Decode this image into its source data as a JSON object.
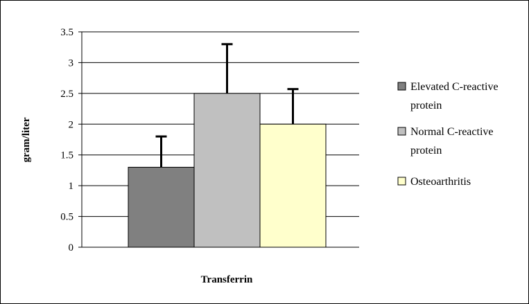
{
  "chart_data": {
    "type": "bar",
    "title": "",
    "xlabel": "Transferrin",
    "ylabel": "gram/liter",
    "ylim": [
      0,
      3.5
    ],
    "yticks": [
      0,
      0.5,
      1,
      1.5,
      2,
      2.5,
      3,
      3.5
    ],
    "ytick_labels": [
      "0",
      "0.5",
      "1",
      "1.5",
      "2",
      "2.5",
      "3",
      "3.5"
    ],
    "grid": true,
    "legend_position": "right",
    "categories": [
      "Transferrin"
    ],
    "series": [
      {
        "name": "Elevated C-reactive protein",
        "legend_lines": [
          "Elevated C-reactive",
          "protein"
        ],
        "values": [
          1.3
        ],
        "error": [
          0.5
        ],
        "color": "#808080"
      },
      {
        "name": "Normal C-reactive protein",
        "legend_lines": [
          "Normal C-reactive",
          "protein"
        ],
        "values": [
          2.5
        ],
        "error": [
          0.8
        ],
        "color": "#c0c0c0"
      },
      {
        "name": "Osteoarthritis",
        "legend_lines": [
          "Osteoarthritis"
        ],
        "values": [
          2.0
        ],
        "error": [
          0.57
        ],
        "color": "#ffffcc"
      }
    ]
  }
}
